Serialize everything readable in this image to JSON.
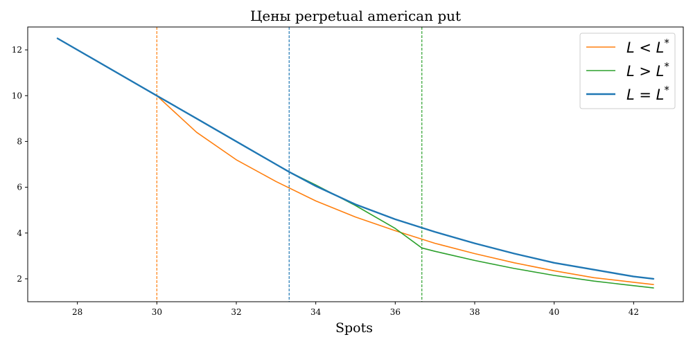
{
  "chart_data": {
    "type": "line",
    "title": "Цены perpetual american put",
    "xlabel": "Spots",
    "ylabel": "",
    "xlim": [
      26.75,
      43.25
    ],
    "ylim": [
      1.0,
      13.0
    ],
    "xticks": [
      28,
      30,
      32,
      34,
      36,
      38,
      40,
      42
    ],
    "yticks": [
      2,
      4,
      6,
      8,
      10,
      12
    ],
    "grid": false,
    "legend_position": "top-right",
    "vlines": [
      {
        "x": 30.0,
        "color": "#ff7f0e",
        "style": "dashed"
      },
      {
        "x": 33.33,
        "color": "#1f77b4",
        "style": "dashed"
      },
      {
        "x": 36.67,
        "color": "#2ca02c",
        "style": "dashed"
      }
    ],
    "series": [
      {
        "name": "L < L*",
        "legend_main": "L < L",
        "legend_sup": "*",
        "color": "#ff7f0e",
        "width": 1.6,
        "x": [
          27.5,
          30.0,
          31.0,
          32.0,
          33.0,
          34.0,
          35.0,
          36.0,
          37.0,
          38.0,
          39.0,
          40.0,
          41.0,
          42.0,
          42.5
        ],
        "y": [
          12.5,
          10.0,
          8.4,
          7.2,
          6.25,
          5.4,
          4.7,
          4.1,
          3.55,
          3.1,
          2.7,
          2.35,
          2.05,
          1.85,
          1.75
        ]
      },
      {
        "name": "L > L*",
        "legend_main": "L > L",
        "legend_sup": "*",
        "color": "#2ca02c",
        "width": 1.6,
        "x": [
          27.5,
          30.0,
          31.0,
          32.0,
          33.0,
          33.33,
          34.0,
          35.0,
          36.0,
          36.67,
          37.0,
          38.0,
          39.0,
          40.0,
          41.0,
          42.0,
          42.5
        ],
        "y": [
          12.5,
          10.0,
          9.0,
          8.0,
          7.0,
          6.67,
          6.1,
          5.2,
          4.2,
          3.35,
          3.2,
          2.8,
          2.45,
          2.15,
          1.9,
          1.7,
          1.6
        ]
      },
      {
        "name": "L = L*",
        "legend_main": "L = L",
        "legend_sup": "*",
        "color": "#1f77b4",
        "width": 2.4,
        "x": [
          27.5,
          30.0,
          31.0,
          32.0,
          33.0,
          33.33,
          34.0,
          35.0,
          36.0,
          37.0,
          38.0,
          39.0,
          40.0,
          41.0,
          42.0,
          42.5
        ],
        "y": [
          12.5,
          10.0,
          9.0,
          8.0,
          7.0,
          6.67,
          6.05,
          5.25,
          4.6,
          4.05,
          3.55,
          3.1,
          2.7,
          2.4,
          2.1,
          2.0
        ]
      }
    ]
  }
}
